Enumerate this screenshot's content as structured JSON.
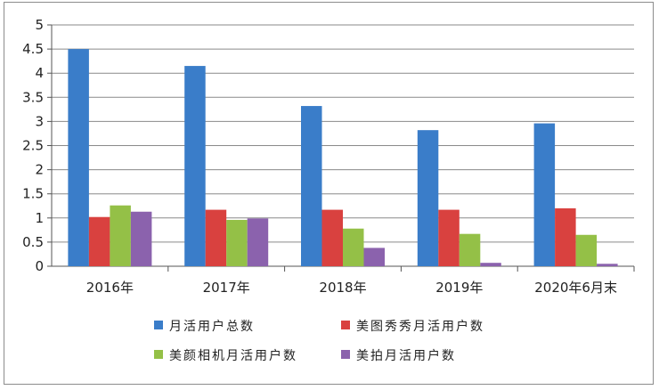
{
  "chart_data": {
    "type": "bar",
    "categories": [
      "2016年",
      "2017年",
      "2018年",
      "2019年",
      "2020年6月末"
    ],
    "series": [
      {
        "name": "月活用户总数",
        "color": "#3a7dc9",
        "values": [
          4.5,
          4.15,
          3.32,
          2.82,
          2.96
        ]
      },
      {
        "name": "美图秀秀月活用户数",
        "color": "#d9413f",
        "values": [
          1.02,
          1.17,
          1.17,
          1.17,
          1.2
        ]
      },
      {
        "name": "美颜相机月活用户数",
        "color": "#94c047",
        "values": [
          1.26,
          0.96,
          0.78,
          0.67,
          0.65
        ]
      },
      {
        "name": "美拍月活用户数",
        "color": "#8b62ad",
        "values": [
          1.13,
          0.99,
          0.38,
          0.07,
          0.05
        ]
      }
    ],
    "yticks": [
      "0",
      "0.5",
      "1",
      "1.5",
      "2",
      "2.5",
      "3",
      "3.5",
      "4",
      "4.5",
      "5"
    ],
    "ylim": [
      0,
      5
    ],
    "grid": true,
    "legend_position": "bottom",
    "title": "",
    "xlabel": "",
    "ylabel": ""
  }
}
